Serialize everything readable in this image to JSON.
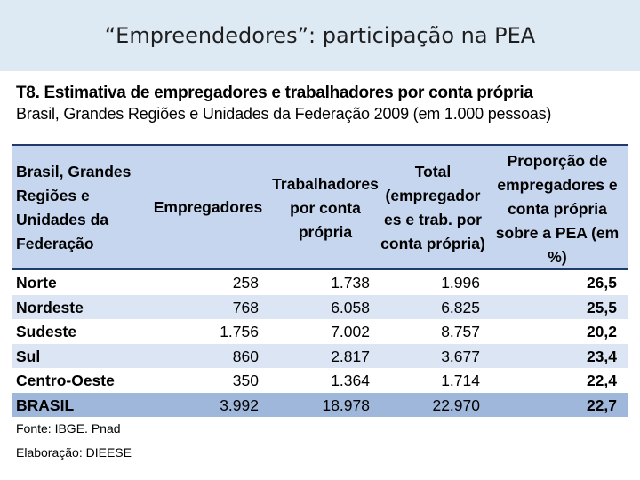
{
  "slide": {
    "title": "“Empreendedores”: participação na PEA"
  },
  "table": {
    "heading": "T8. Estimativa de empregadores e trabalhadores por conta própria",
    "subheading": "Brasil, Grandes Regiões e Unidades da Federação 2009 (em 1.000 pessoas)",
    "columns": {
      "region": "Brasil, Grandes\nRegiões e\nUnidades da\nFederação",
      "employers": "Empregadores",
      "self_employed": "Trabalhadores\npor conta\nprópria",
      "total": "Total\n(empregador\nes e trab. por\nconta própria)",
      "share": "Proporção de\nempregadores e\nconta própria\nsobre a PEA (em\n%)"
    },
    "rows": [
      {
        "region": "Norte",
        "employers": "258",
        "self_employed": "1.738",
        "total": "1.996",
        "share": "26,5"
      },
      {
        "region": "Nordeste",
        "employers": "768",
        "self_employed": "6.058",
        "total": "6.825",
        "share": "25,5"
      },
      {
        "region": "Sudeste",
        "employers": "1.756",
        "self_employed": "7.002",
        "total": "8.757",
        "share": "20,2"
      },
      {
        "region": "Sul",
        "employers": "860",
        "self_employed": "2.817",
        "total": "3.677",
        "share": "23,4"
      },
      {
        "region": "Centro-Oeste",
        "employers": "350",
        "self_employed": "1.364",
        "total": "1.714",
        "share": "22,4"
      },
      {
        "region": "BRASIL",
        "employers": "3.992",
        "self_employed": "18.978",
        "total": "22.970",
        "share": "22,7"
      }
    ],
    "source": "Fonte: IBGE. Pnad",
    "credit": "Elaboração: DIEESE"
  }
}
